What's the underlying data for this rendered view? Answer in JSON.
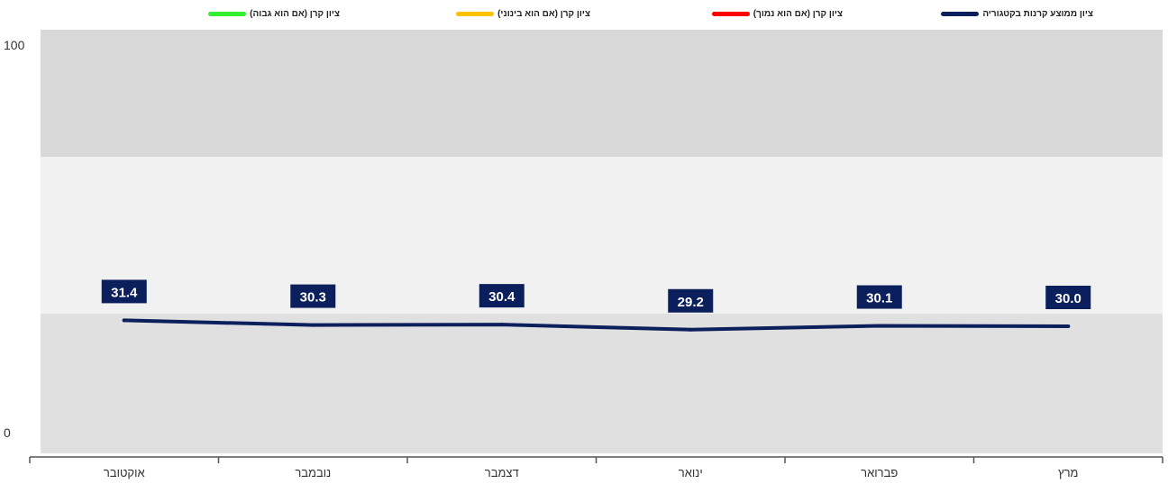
{
  "legend": [
    {
      "label": "ציון ממוצע קרנות בקטגוריה",
      "color": "#0b1f5c"
    },
    {
      "label": "ציון קרן (אם הוא נמוך)",
      "color": "#ff0000"
    },
    {
      "label": "ציון קרן (אם הוא בינוני)",
      "color": "#ffc000"
    },
    {
      "label": "ציון קרן (אם הוא גבוה)",
      "color": "#33ee33"
    }
  ],
  "chart_data": {
    "type": "line",
    "categories": [
      "אוקטובר",
      "נובמבר",
      "דצמבר",
      "ינואר",
      "פברואר",
      "מרץ"
    ],
    "series": [
      {
        "name": "ציון ממוצע קרנות בקטגוריה",
        "values": [
          31.4,
          30.3,
          30.4,
          29.2,
          30.1,
          30.0
        ],
        "color": "#0b1f5c"
      }
    ],
    "ylim": [
      0,
      100
    ],
    "yticks": [
      0,
      100
    ],
    "bands": [
      {
        "from": 0,
        "to": 33,
        "color": "#e0e0e0"
      },
      {
        "from": 33,
        "to": 70,
        "color": "#f1f1f1"
      },
      {
        "from": 70,
        "to": 100,
        "color": "#d9d9d9"
      }
    ],
    "xlabel": "",
    "ylabel": "",
    "title": ""
  }
}
